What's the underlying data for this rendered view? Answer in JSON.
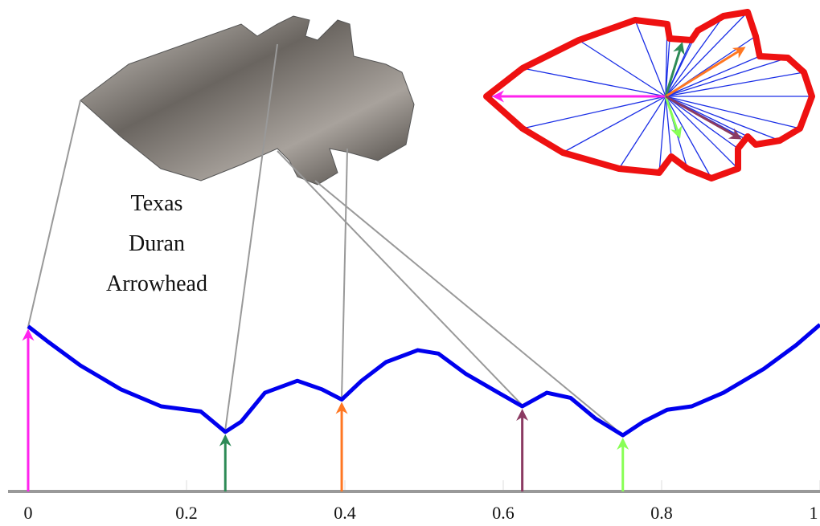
{
  "caption": [
    "Texas",
    "Duran",
    "Arrowhead"
  ],
  "chart_data": {
    "type": "line",
    "x": [
      0,
      0.025,
      0.066,
      0.117,
      0.168,
      0.218,
      0.249,
      0.269,
      0.299,
      0.34,
      0.371,
      0.396,
      0.421,
      0.452,
      0.492,
      0.518,
      0.553,
      0.594,
      0.624,
      0.655,
      0.685,
      0.716,
      0.751,
      0.777,
      0.807,
      0.838,
      0.878,
      0.929,
      0.97,
      1
    ],
    "series": [
      {
        "color": "#0000ee",
        "values": [
          0.97,
          0.88,
          0.74,
          0.6,
          0.5,
          0.47,
          0.35,
          0.41,
          0.58,
          0.65,
          0.6,
          0.54,
          0.65,
          0.76,
          0.83,
          0.81,
          0.69,
          0.58,
          0.5,
          0.58,
          0.55,
          0.43,
          0.33,
          0.41,
          0.48,
          0.5,
          0.58,
          0.72,
          0.86,
          0.98
        ]
      }
    ],
    "markers": [
      {
        "x": 0,
        "color": "#ff22ee"
      },
      {
        "x": 0.249,
        "color": "#2e8b57"
      },
      {
        "x": 0.396,
        "color": "#ff7722"
      },
      {
        "x": 0.624,
        "color": "#8b3a62"
      },
      {
        "x": 0.751,
        "color": "#88ff55"
      }
    ],
    "xlim": [
      0,
      1
    ],
    "xticks": [
      0,
      0.2,
      0.4,
      0.6,
      0.8,
      1
    ],
    "ylim": [
      0,
      1
    ]
  }
}
